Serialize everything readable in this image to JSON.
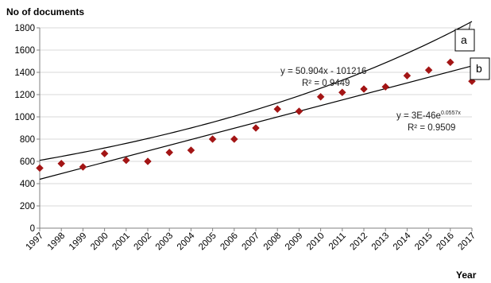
{
  "chart_data": {
    "type": "scatter",
    "ylabel": "No of documents",
    "xlabel": "Year",
    "ylim": [
      0,
      1800
    ],
    "yticks": [
      "0",
      "200",
      "400",
      "600",
      "800",
      "1000",
      "1200",
      "1400",
      "1600",
      "1800"
    ],
    "xticks": [
      "1997",
      "1998",
      "1999",
      "2000",
      "2001",
      "2002",
      "2003",
      "2004",
      "2005",
      "2006",
      "2007",
      "2008",
      "2009",
      "2010",
      "2011",
      "2012",
      "2013",
      "2014",
      "2015",
      "2016",
      "2017"
    ],
    "grid": "horizontal",
    "series": [
      {
        "type": "scatter",
        "color": "#a31515",
        "marker": "diamond",
        "x": [
          1997,
          1998,
          1999,
          2000,
          2001,
          2002,
          2003,
          2004,
          2005,
          2006,
          2007,
          2008,
          2009,
          2010,
          2011,
          2012,
          2013,
          2014,
          2015,
          2016,
          2017
        ],
        "values": [
          540,
          580,
          550,
          670,
          610,
          600,
          680,
          700,
          800,
          800,
          900,
          1070,
          1050,
          1180,
          1220,
          1250,
          1270,
          1370,
          1420,
          1490,
          1320
        ]
      }
    ],
    "trendlines": [
      {
        "label": "b",
        "type": "linear",
        "slope": 50.904,
        "intercept": -101216,
        "equation": "y = 50.904x - 101216",
        "r2": "R² = 0.9449"
      },
      {
        "label": "a",
        "type": "exponential",
        "coefficient": 3e-46,
        "rate": 0.0557,
        "equation_base": "y = 3E-46e",
        "equation_exp": "0.0557x",
        "r2": "R² = 0.9509"
      }
    ],
    "colors": {
      "marker": "#a31515",
      "trendline": "#000000",
      "grid": "#d9d9d9"
    }
  }
}
